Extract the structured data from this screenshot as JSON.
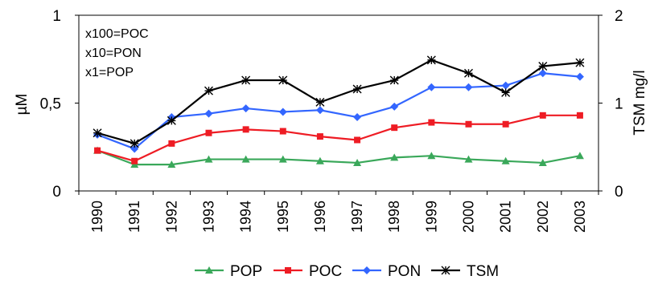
{
  "chart_data": {
    "type": "line",
    "categories": [
      "1990",
      "1991",
      "1992",
      "1993",
      "1994",
      "1995",
      "1996",
      "1997",
      "1998",
      "1999",
      "2000",
      "2001",
      "2002",
      "2003"
    ],
    "y_left": {
      "label": "µM",
      "ylim": [
        0,
        1
      ],
      "ticks": [
        0,
        0.5,
        1
      ],
      "tick_labels": [
        "0",
        "0,5",
        "1"
      ]
    },
    "y_right": {
      "label": "TSM mg/l",
      "ylim": [
        0,
        2
      ],
      "ticks": [
        0,
        1,
        2
      ],
      "tick_labels": [
        "0",
        "1",
        "2"
      ]
    },
    "annotations": [
      "x100=POC",
      "x10=PON",
      "x1=POP"
    ],
    "grid": false,
    "legend_position": "bottom",
    "series": [
      {
        "name": "POP",
        "color": "#3aa85a",
        "marker": "triangle",
        "axis": "left",
        "values": [
          0.23,
          0.15,
          0.15,
          0.18,
          0.18,
          0.18,
          0.17,
          0.16,
          0.19,
          0.2,
          0.18,
          0.17,
          0.16,
          0.2
        ]
      },
      {
        "name": "POC",
        "color": "#ee1c24",
        "marker": "square",
        "axis": "left",
        "values": [
          0.23,
          0.17,
          0.27,
          0.33,
          0.35,
          0.34,
          0.31,
          0.29,
          0.36,
          0.39,
          0.38,
          0.38,
          0.43,
          0.43
        ]
      },
      {
        "name": "PON",
        "color": "#3366ff",
        "marker": "diamond",
        "axis": "left",
        "values": [
          0.32,
          0.24,
          0.42,
          0.44,
          0.47,
          0.45,
          0.46,
          0.42,
          0.48,
          0.59,
          0.59,
          0.6,
          0.67,
          0.65
        ]
      },
      {
        "name": "TSM",
        "color": "#000000",
        "marker": "star",
        "axis": "right",
        "values": [
          0.66,
          0.54,
          0.8,
          1.14,
          1.26,
          1.26,
          1.01,
          1.16,
          1.26,
          1.49,
          1.34,
          1.12,
          1.42,
          1.46
        ]
      }
    ]
  }
}
